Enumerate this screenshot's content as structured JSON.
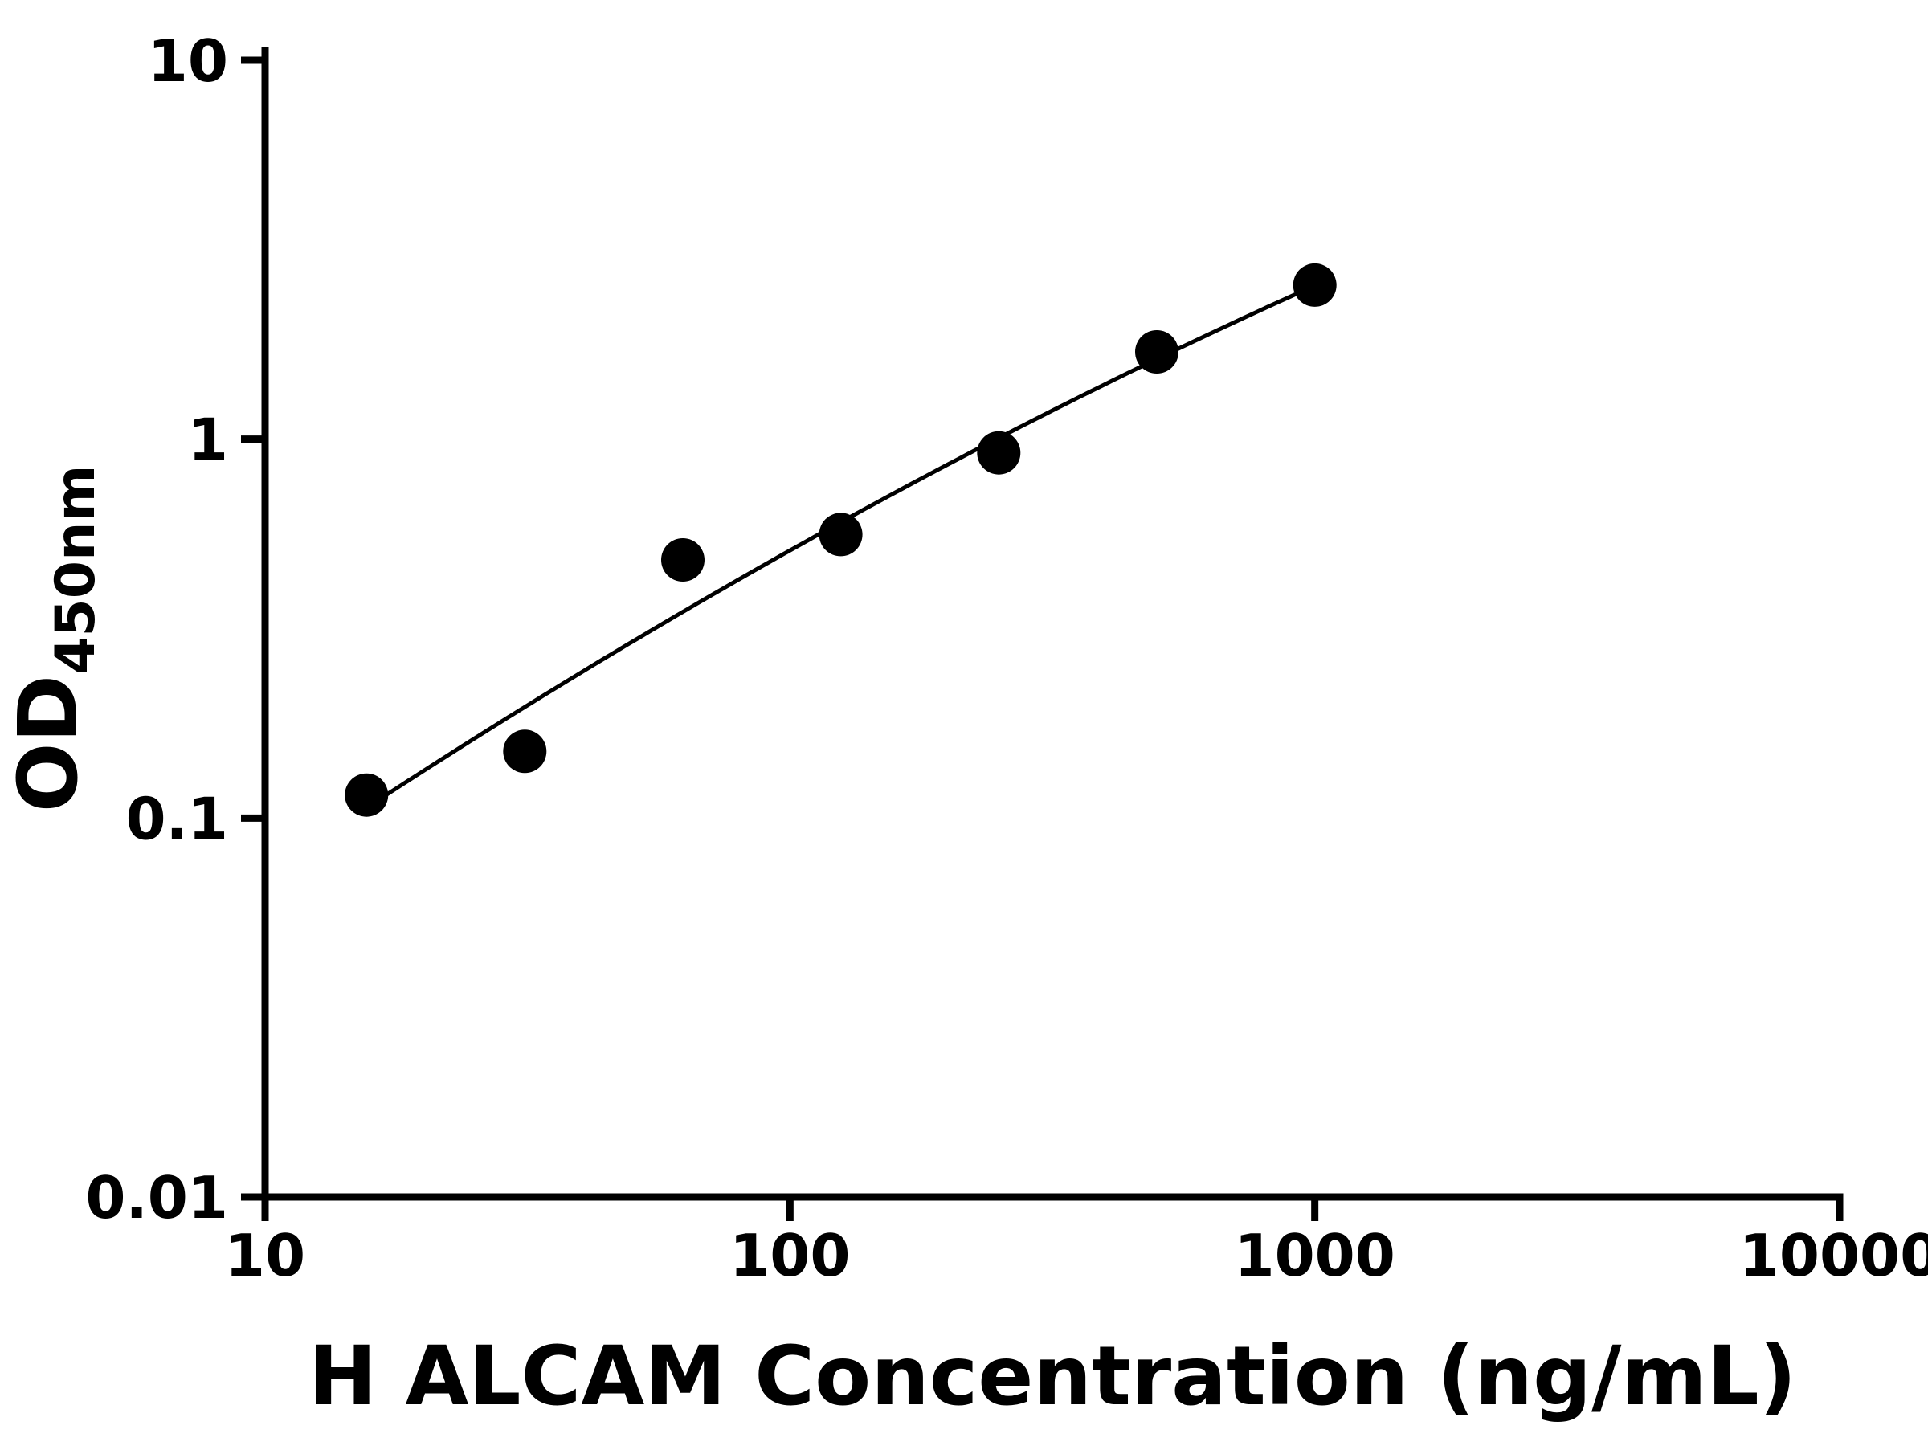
{
  "figure": {
    "background_color": "#ffffff",
    "foreground_color": "#000000"
  },
  "chart_data": {
    "type": "scatter",
    "xlabel": "H ALCAM Concentration (ng/mL)",
    "ylabel_main": "OD",
    "ylabel_sub": "450nm",
    "x_scale": "log",
    "y_scale": "log",
    "xlim": [
      10,
      10000
    ],
    "ylim": [
      0.01,
      10
    ],
    "x_ticks": [
      10,
      100,
      1000,
      10000
    ],
    "x_tick_labels": [
      "10",
      "100",
      "1000",
      "10000"
    ],
    "y_ticks": [
      0.01,
      0.1,
      1,
      10
    ],
    "y_tick_labels": [
      "0.01",
      "0.1",
      "1",
      "10"
    ],
    "grid": false,
    "legend": null,
    "points": {
      "x": [
        15.6,
        31.25,
        62.5,
        125,
        250,
        500,
        1000
      ],
      "y": [
        0.115,
        0.15,
        0.48,
        0.56,
        0.92,
        1.7,
        2.55
      ]
    },
    "fit_curve": {
      "type": "quadratic-loglog",
      "formula": "log10(y) = a + b*(log10(x)-u0) + c*(log10(x)-u0)^2",
      "u0": 2.097,
      "a": -0.219,
      "b": 0.7627,
      "c": -0.079,
      "x_range": [
        15.6,
        1000
      ]
    },
    "marker": {
      "shape": "circle",
      "color": "#000000",
      "radius_px": 27
    },
    "line_color": "#000000",
    "axis_color": "#000000"
  }
}
